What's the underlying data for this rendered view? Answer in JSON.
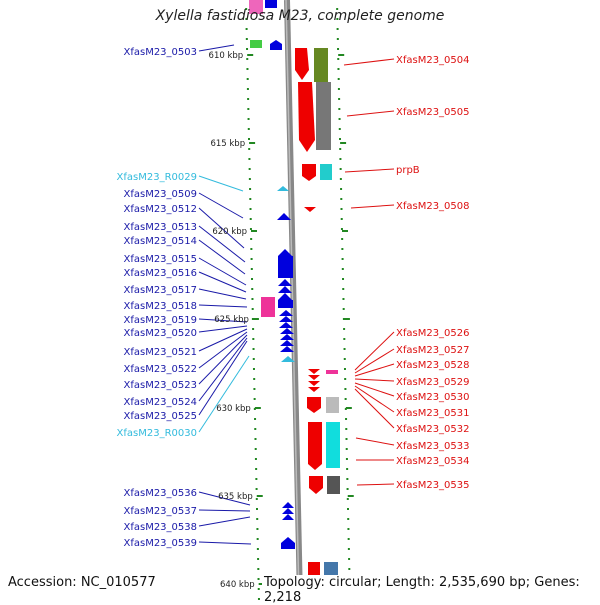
{
  "title": "Xylella fastidiosa M23, complete genome",
  "accession_text": "Accession: NC_010577",
  "topology_text": "Topology: circular; Length: 2,535,690 bp; Genes: 2,218",
  "kbp_ticks": [
    "610 kbp",
    "615 kbp",
    "620 kbp",
    "625 kbp",
    "630 kbp",
    "635 kbp",
    "640 kbp"
  ],
  "left_labels": [
    {
      "text": "XfasM23_0503",
      "color": "#1a1aa8"
    },
    {
      "text": "XfasM23_R0029",
      "color": "#33bbdd"
    },
    {
      "text": "XfasM23_0509",
      "color": "#1a1aa8"
    },
    {
      "text": "XfasM23_0512",
      "color": "#1a1aa8"
    },
    {
      "text": "XfasM23_0513",
      "color": "#1a1aa8"
    },
    {
      "text": "XfasM23_0514",
      "color": "#1a1aa8"
    },
    {
      "text": "XfasM23_0515",
      "color": "#1a1aa8"
    },
    {
      "text": "XfasM23_0516",
      "color": "#1a1aa8"
    },
    {
      "text": "XfasM23_0517",
      "color": "#1a1aa8"
    },
    {
      "text": "XfasM23_0518",
      "color": "#1a1aa8"
    },
    {
      "text": "XfasM23_0519",
      "color": "#1a1aa8"
    },
    {
      "text": "XfasM23_0520",
      "color": "#1a1aa8"
    },
    {
      "text": "XfasM23_0521",
      "color": "#1a1aa8"
    },
    {
      "text": "XfasM23_0522",
      "color": "#1a1aa8"
    },
    {
      "text": "XfasM23_0523",
      "color": "#1a1aa8"
    },
    {
      "text": "XfasM23_0524",
      "color": "#1a1aa8"
    },
    {
      "text": "XfasM23_0525",
      "color": "#1a1aa8"
    },
    {
      "text": "XfasM23_R0030",
      "color": "#33bbdd"
    },
    {
      "text": "XfasM23_0536",
      "color": "#1a1aa8"
    },
    {
      "text": "XfasM23_0537",
      "color": "#1a1aa8"
    },
    {
      "text": "XfasM23_0538",
      "color": "#1a1aa8"
    },
    {
      "text": "XfasM23_0539",
      "color": "#1a1aa8"
    }
  ],
  "right_labels": [
    {
      "text": "XfasM23_0504",
      "color": "#dd1111"
    },
    {
      "text": "XfasM23_0505",
      "color": "#dd1111"
    },
    {
      "text": "prpB",
      "color": "#dd1111"
    },
    {
      "text": "XfasM23_0508",
      "color": "#dd1111"
    },
    {
      "text": "XfasM23_0526",
      "color": "#dd1111"
    },
    {
      "text": "XfasM23_0527",
      "color": "#dd1111"
    },
    {
      "text": "XfasM23_0528",
      "color": "#dd1111"
    },
    {
      "text": "XfasM23_0529",
      "color": "#dd1111"
    },
    {
      "text": "XfasM23_0530",
      "color": "#dd1111"
    },
    {
      "text": "XfasM23_0531",
      "color": "#dd1111"
    },
    {
      "text": "XfasM23_0532",
      "color": "#dd1111"
    },
    {
      "text": "XfasM23_0533",
      "color": "#dd1111"
    },
    {
      "text": "XfasM23_0534",
      "color": "#dd1111"
    },
    {
      "text": "XfasM23_0535",
      "color": "#dd1111"
    }
  ],
  "colors": {
    "forward_strand": "#0000dd",
    "reverse_strand": "#ee0000",
    "rna": "#33bbdd",
    "backbone": "#888888",
    "tick": "#228822"
  }
}
